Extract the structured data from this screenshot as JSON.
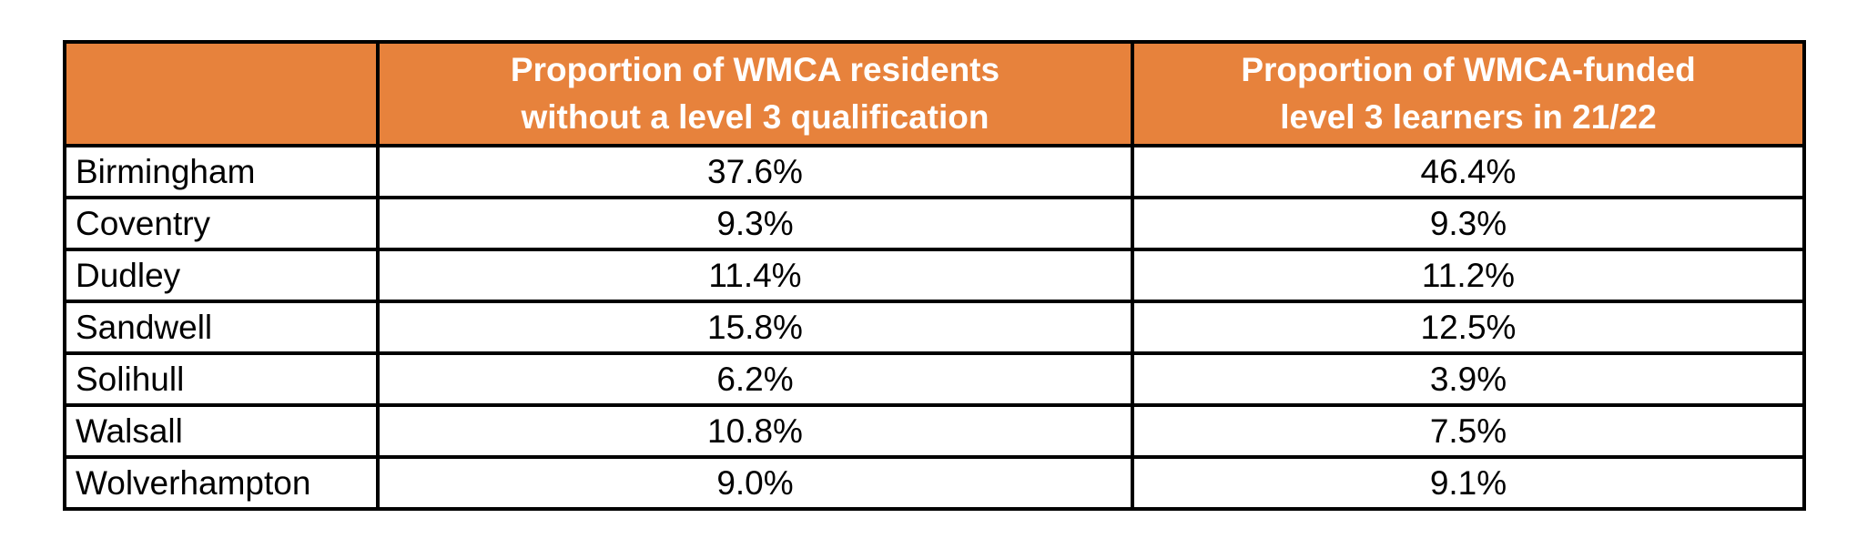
{
  "colors": {
    "header_bg": "#E7823C",
    "header_text": "#FFFFFF",
    "grid_border": "#000000",
    "body_text": "#000000",
    "page_bg": "#FFFFFF"
  },
  "table": {
    "header": {
      "corner": "",
      "col2_line1": "Proportion of WMCA residents",
      "col2_line2": "without a level 3 qualification",
      "col3_line1": "Proportion of WMCA-funded",
      "col3_line2": "level 3 learners in 21/22"
    },
    "rows": [
      {
        "area": "Birmingham",
        "without_l3": "37.6%",
        "funded_l3": "46.4%"
      },
      {
        "area": "Coventry",
        "without_l3": "9.3%",
        "funded_l3": "9.3%"
      },
      {
        "area": "Dudley",
        "without_l3": "11.4%",
        "funded_l3": "11.2%"
      },
      {
        "area": "Sandwell",
        "without_l3": "15.8%",
        "funded_l3": "12.5%"
      },
      {
        "area": "Solihull",
        "without_l3": "6.2%",
        "funded_l3": "3.9%"
      },
      {
        "area": "Walsall",
        "without_l3": "10.8%",
        "funded_l3": "7.5%"
      },
      {
        "area": "Wolverhampton",
        "without_l3": "9.0%",
        "funded_l3": "9.1%"
      }
    ]
  },
  "chart_data": {
    "type": "table",
    "title": "",
    "columns": [
      "",
      "Proportion of WMCA residents without a level 3 qualification",
      "Proportion of WMCA-funded level 3 learners in 21/22"
    ],
    "rows": [
      [
        "Birmingham",
        "37.6%",
        "46.4%"
      ],
      [
        "Coventry",
        "9.3%",
        "9.3%"
      ],
      [
        "Dudley",
        "11.4%",
        "11.2%"
      ],
      [
        "Sandwell",
        "15.8%",
        "12.5%"
      ],
      [
        "Solihull",
        "6.2%",
        "3.9%"
      ],
      [
        "Walsall",
        "10.8%",
        "7.5%"
      ],
      [
        "Wolverhampton",
        "9.0%",
        "9.1%"
      ]
    ]
  }
}
